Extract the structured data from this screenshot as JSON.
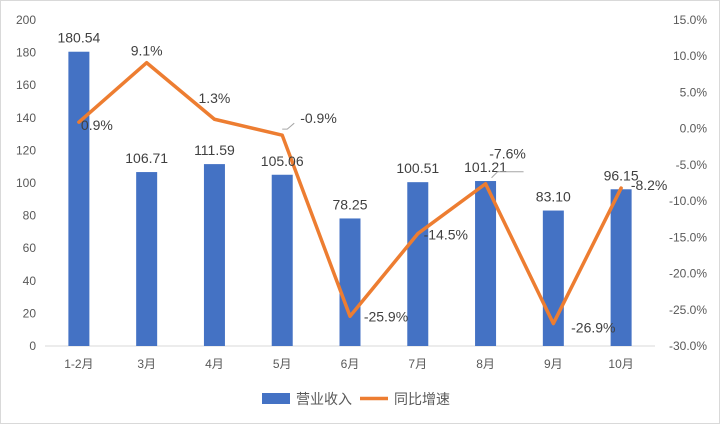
{
  "chart_data": {
    "type": "bar+line",
    "categories": [
      "1-2月",
      "3月",
      "4月",
      "5月",
      "6月",
      "7月",
      "8月",
      "9月",
      "10月"
    ],
    "series": [
      {
        "name": "营业收入",
        "type": "bar",
        "axis": "left",
        "values": [
          180.54,
          106.71,
          111.59,
          105.06,
          78.25,
          100.51,
          101.21,
          83.1,
          96.15
        ],
        "labels": [
          "180.54",
          "106.71",
          "111.59",
          "105.06",
          "78.25",
          "100.51",
          "101.21",
          "83.10",
          "96.15"
        ]
      },
      {
        "name": "同比增速",
        "type": "line",
        "axis": "right",
        "values": [
          0.9,
          9.1,
          1.3,
          -0.9,
          -25.9,
          -14.5,
          -7.6,
          -26.9,
          -8.2
        ],
        "labels": [
          "0.9%",
          "9.1%",
          "1.3%",
          "-0.9%",
          "-25.9%",
          "-14.5%",
          "-7.6%",
          "-26.9%",
          "-8.2%"
        ]
      }
    ],
    "y_left": {
      "min": 0,
      "max": 200,
      "ticks": [
        "0",
        "20",
        "40",
        "60",
        "80",
        "100",
        "120",
        "140",
        "160",
        "180",
        "200"
      ]
    },
    "y_right": {
      "min": -30,
      "max": 15,
      "ticks": [
        "-30.0%",
        "-25.0%",
        "-20.0%",
        "-15.0%",
        "-10.0%",
        "-5.0%",
        "0.0%",
        "5.0%",
        "10.0%",
        "15.0%"
      ]
    },
    "legend_position": "bottom",
    "grid": false,
    "colors": {
      "bar": "#4472c4",
      "line": "#ed7d31"
    }
  }
}
